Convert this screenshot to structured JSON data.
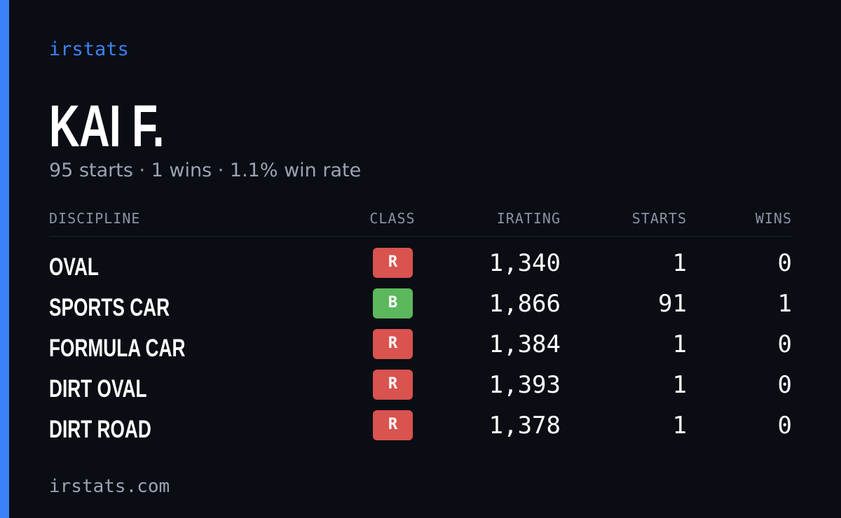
{
  "brand": "irstats",
  "profile": {
    "name": "KAI F.",
    "summary": "95 starts · 1 wins · 1.1% win rate"
  },
  "table": {
    "headers": [
      "DISCIPLINE",
      "CLASS",
      "IRATING",
      "STARTS",
      "WINS"
    ],
    "rows": [
      [
        "OVAL",
        "R",
        "1,340",
        1,
        0
      ],
      [
        "SPORTS CAR",
        "B",
        "1,866",
        91,
        1
      ],
      [
        "FORMULA CAR",
        "R",
        "1,384",
        1,
        0
      ],
      [
        "DIRT OVAL",
        "R",
        "1,393",
        1,
        0
      ],
      [
        "DIRT ROAD",
        "R",
        "1,378",
        1,
        0
      ]
    ],
    "class_colors": {
      "R": "#d9534f",
      "B": "#5cb85c"
    }
  },
  "footer": "irstats.com"
}
